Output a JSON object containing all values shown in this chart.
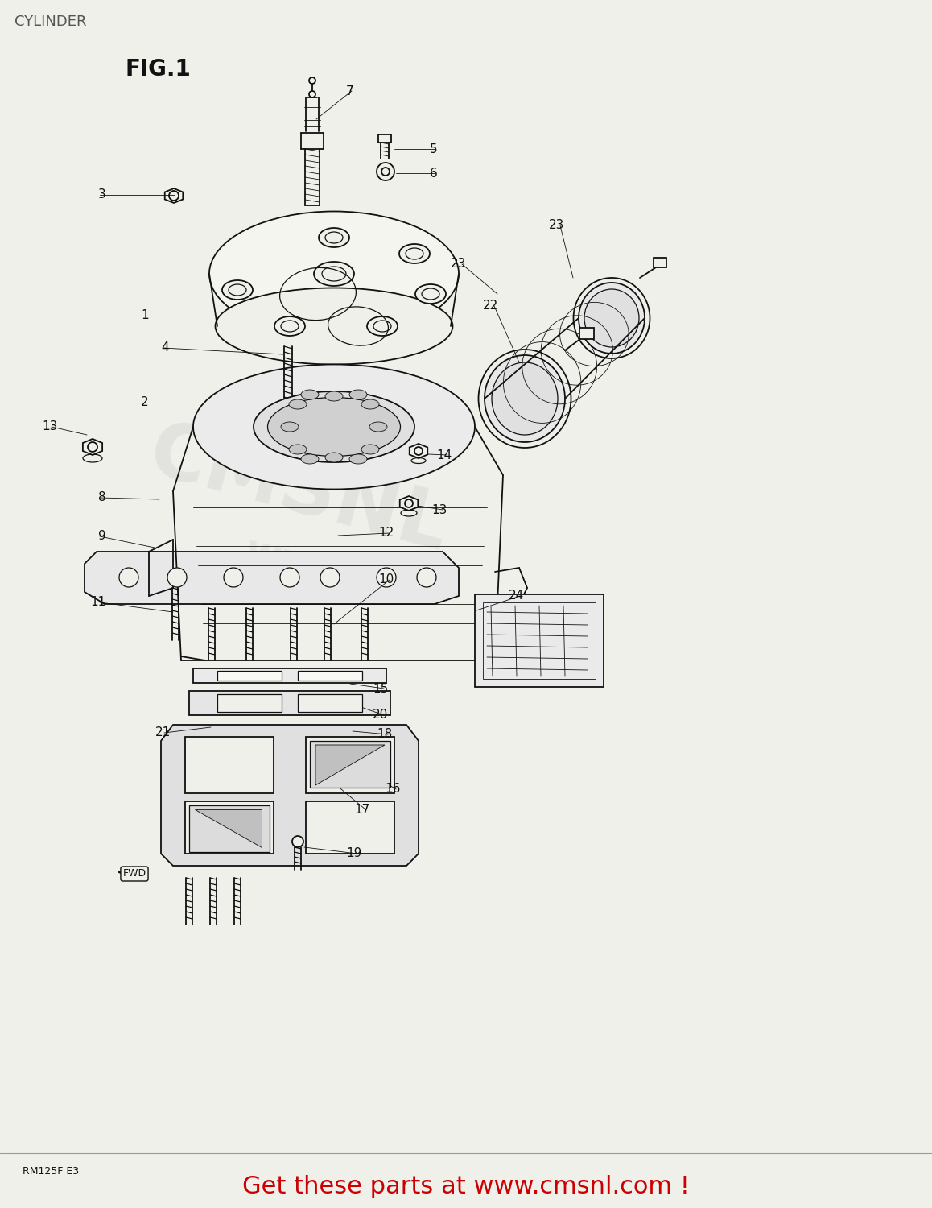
{
  "title": "CYLINDER",
  "fig_label": "FIG.1",
  "model_code": "RM125F E3",
  "footer_text": "Get these parts at www.cmsnl.com !",
  "footer_color": "#cc0000",
  "bg_color": "#f0f0eb",
  "line_color": "#111111",
  "watermark_color": "#c8c8c8",
  "title_fontsize": 13,
  "fig_fontsize": 20,
  "label_fontsize": 11,
  "footer_fontsize": 22,
  "model_fontsize": 9
}
